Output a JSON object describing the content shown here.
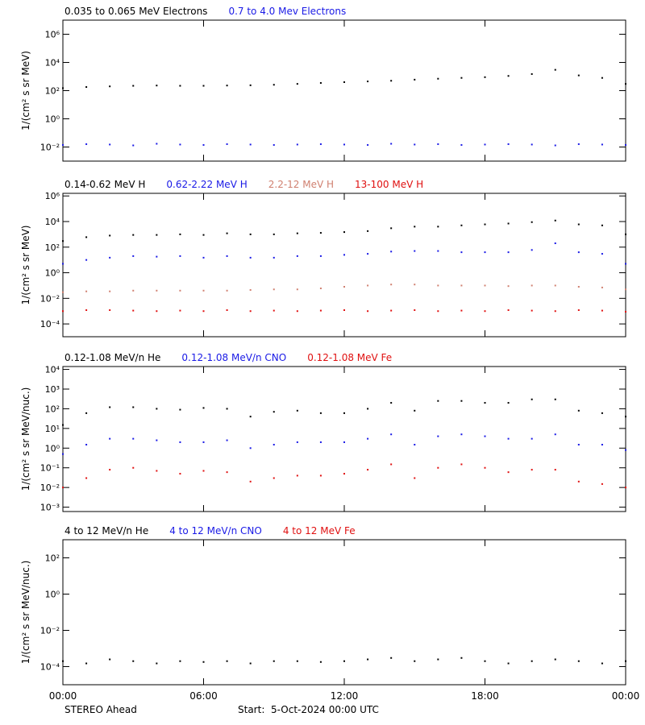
{
  "chart_data": [
    {
      "type": "scatter",
      "yscale": "log",
      "ylabel": "1/(cm² s sr MeV)",
      "xlim": [
        0,
        24
      ],
      "ylim": [
        0.001,
        10000000
      ],
      "yticks": [
        {
          "value": 0.01,
          "label": "10⁻²"
        },
        {
          "value": 1,
          "label": "10⁰"
        },
        {
          "value": 100,
          "label": "10²"
        },
        {
          "value": 10000,
          "label": "10⁴"
        },
        {
          "value": 1000000,
          "label": "10⁶"
        }
      ],
      "x": [
        0,
        1,
        2,
        3,
        4,
        5,
        6,
        7,
        8,
        9,
        10,
        11,
        12,
        13,
        14,
        15,
        16,
        17,
        18,
        19,
        20,
        21,
        22,
        23,
        24
      ],
      "series": [
        {
          "name": "0.035 to 0.065 MeV Electrons",
          "color": "#000000",
          "values": [
            150,
            180,
            200,
            220,
            230,
            220,
            220,
            230,
            240,
            260,
            300,
            350,
            400,
            450,
            500,
            600,
            700,
            800,
            900,
            1100,
            1500,
            3000,
            1200,
            800,
            300
          ]
        },
        {
          "name": "0.7 to 4.0 Mev Electrons",
          "color": "#1a1ae6",
          "values": [
            0.014,
            0.016,
            0.015,
            0.013,
            0.017,
            0.015,
            0.014,
            0.016,
            0.015,
            0.014,
            0.015,
            0.016,
            0.015,
            0.014,
            0.017,
            0.015,
            0.016,
            0.014,
            0.015,
            0.016,
            0.015,
            0.013,
            0.016,
            0.015,
            0.014
          ]
        }
      ]
    },
    {
      "type": "scatter",
      "yscale": "log",
      "ylabel": "1/(cm² s sr MeV)",
      "xlim": [
        0,
        24
      ],
      "ylim": [
        1e-05,
        1600000
      ],
      "yticks": [
        {
          "value": 0.0001,
          "label": "10⁻⁴"
        },
        {
          "value": 0.01,
          "label": "10⁻²"
        },
        {
          "value": 1,
          "label": "10⁰"
        },
        {
          "value": 100,
          "label": "10²"
        },
        {
          "value": 10000,
          "label": "10⁴"
        },
        {
          "value": 1000000,
          "label": "10⁶"
        }
      ],
      "x": [
        0,
        1,
        2,
        3,
        4,
        5,
        6,
        7,
        8,
        9,
        10,
        11,
        12,
        13,
        14,
        15,
        16,
        17,
        18,
        19,
        20,
        21,
        22,
        23,
        24
      ],
      "series": [
        {
          "name": "0.14-0.62 MeV H",
          "color": "#000000",
          "values": [
            300,
            600,
            800,
            900,
            900,
            1000,
            900,
            1200,
            1000,
            1000,
            1200,
            1300,
            1500,
            1800,
            3000,
            4000,
            4000,
            5000,
            6000,
            7000,
            9000,
            12000,
            6000,
            5000,
            1000
          ]
        },
        {
          "name": "0.62-2.22 MeV H",
          "color": "#1a1ae6",
          "values": [
            5,
            10,
            15,
            20,
            18,
            20,
            15,
            20,
            15,
            15,
            20,
            20,
            25,
            30,
            45,
            50,
            50,
            40,
            40,
            40,
            60,
            200,
            40,
            30,
            5
          ]
        },
        {
          "name": "2.2-12 MeV H",
          "color": "#d08070",
          "values": [
            0.03,
            0.035,
            0.035,
            0.04,
            0.04,
            0.04,
            0.04,
            0.04,
            0.045,
            0.05,
            0.05,
            0.06,
            0.08,
            0.1,
            0.12,
            0.12,
            0.1,
            0.1,
            0.1,
            0.09,
            0.1,
            0.1,
            0.08,
            0.07,
            0.05
          ]
        },
        {
          "name": "13-100 MeV H",
          "color": "#e01010",
          "values": [
            0.001,
            0.0012,
            0.0012,
            0.0011,
            0.001,
            0.0011,
            0.001,
            0.0012,
            0.001,
            0.0011,
            0.001,
            0.0011,
            0.0012,
            0.001,
            0.0011,
            0.0012,
            0.001,
            0.0011,
            0.001,
            0.0012,
            0.0011,
            0.001,
            0.0012,
            0.0011,
            0.0009
          ]
        }
      ]
    },
    {
      "type": "scatter",
      "yscale": "log",
      "ylabel": "1/(cm² s sr MeV/nuc.)",
      "xlim": [
        0,
        24
      ],
      "ylim": [
        0.0006,
        14000
      ],
      "yticks": [
        {
          "value": 0.001,
          "label": "10⁻³"
        },
        {
          "value": 0.01,
          "label": "10⁻²"
        },
        {
          "value": 0.1,
          "label": "10⁻¹"
        },
        {
          "value": 1,
          "label": "10⁰"
        },
        {
          "value": 10,
          "label": "10¹"
        },
        {
          "value": 100,
          "label": "10²"
        },
        {
          "value": 1000,
          "label": "10³"
        },
        {
          "value": 10000,
          "label": "10⁴"
        }
      ],
      "x": [
        0,
        1,
        2,
        3,
        4,
        5,
        6,
        7,
        8,
        9,
        10,
        11,
        12,
        13,
        14,
        15,
        16,
        17,
        18,
        19,
        20,
        21,
        22,
        23,
        24
      ],
      "series": [
        {
          "name": "0.12-1.08 MeV/n He",
          "color": "#000000",
          "values": [
            15,
            60,
            120,
            120,
            100,
            90,
            110,
            100,
            40,
            70,
            80,
            60,
            60,
            100,
            200,
            80,
            250,
            250,
            200,
            200,
            300,
            300,
            80,
            60,
            40
          ]
        },
        {
          "name": "0.12-1.08 MeV/n CNO",
          "color": "#1a1ae6",
          "values": [
            0.5,
            1.5,
            3,
            3,
            2.5,
            2,
            2,
            2.5,
            1,
            1.5,
            2,
            2,
            2,
            3,
            5,
            1.5,
            4,
            5,
            4,
            3,
            3,
            5,
            1.5,
            1.5,
            0.8
          ]
        },
        {
          "name": "0.12-1.08 MeV Fe",
          "color": "#e01010",
          "values": [
            0.01,
            0.03,
            0.08,
            0.1,
            0.07,
            0.05,
            0.07,
            0.06,
            0.02,
            0.03,
            0.04,
            0.04,
            0.05,
            0.08,
            0.15,
            0.03,
            0.1,
            0.15,
            0.1,
            0.06,
            0.08,
            0.08,
            0.02,
            0.015,
            0.01
          ]
        }
      ]
    },
    {
      "type": "scatter",
      "yscale": "log",
      "ylabel": "1/(cm² s sr MeV/nuc.)",
      "xlim": [
        0,
        24
      ],
      "ylim": [
        1e-05,
        1000
      ],
      "yticks": [
        {
          "value": 0.0001,
          "label": "10⁻⁴"
        },
        {
          "value": 0.01,
          "label": "10⁻²"
        },
        {
          "value": 1,
          "label": "10⁰"
        },
        {
          "value": 100,
          "label": "10²"
        }
      ],
      "xticks": [
        {
          "value": 0,
          "label": "00:00"
        },
        {
          "value": 6,
          "label": "06:00"
        },
        {
          "value": 12,
          "label": "12:00"
        },
        {
          "value": 18,
          "label": "18:00"
        },
        {
          "value": 24,
          "label": "00:00"
        }
      ],
      "x": [
        0,
        1,
        2,
        3,
        4,
        5,
        6,
        7,
        8,
        9,
        10,
        11,
        12,
        13,
        14,
        15,
        16,
        17,
        18,
        19,
        20,
        21,
        22,
        23,
        24
      ],
      "series": [
        {
          "name": "4 to 12 MeV/n He",
          "color": "#000000",
          "values": [
            0.0002,
            0.00015,
            0.00025,
            0.0002,
            0.00015,
            0.0002,
            0.00018,
            0.0002,
            0.00015,
            0.0002,
            0.0002,
            0.00018,
            0.0002,
            0.00025,
            0.0003,
            0.0002,
            0.00025,
            0.0003,
            0.0002,
            0.00015,
            0.0002,
            0.00025,
            0.0002,
            0.00015,
            0.0002
          ]
        },
        {
          "name": "4 to 12 MeV/n CNO",
          "color": "#1a1ae6",
          "values": [
            null,
            null,
            null,
            null,
            null,
            null,
            null,
            null,
            null,
            null,
            null,
            null,
            null,
            null,
            null,
            null,
            null,
            null,
            null,
            null,
            null,
            null,
            null,
            null,
            null
          ]
        },
        {
          "name": "4 to 12 MeV Fe",
          "color": "#e01010",
          "values": [
            null,
            null,
            null,
            null,
            null,
            null,
            null,
            null,
            null,
            null,
            null,
            null,
            null,
            null,
            null,
            null,
            null,
            null,
            null,
            null,
            null,
            null,
            null,
            null,
            null
          ]
        }
      ]
    }
  ],
  "footer": {
    "left": "STEREO Ahead",
    "start": "Start:  5-Oct-2024 00:00 UTC"
  }
}
